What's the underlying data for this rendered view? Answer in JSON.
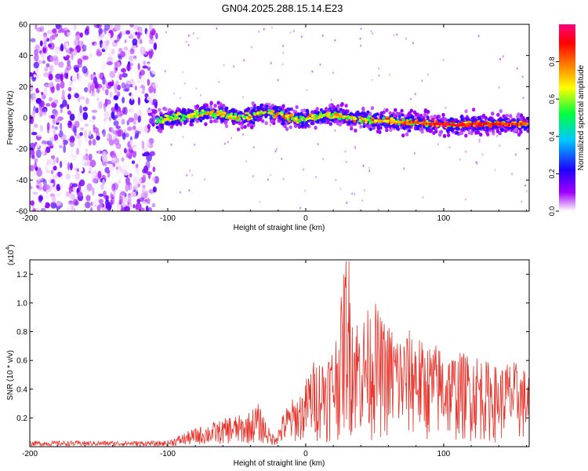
{
  "title": "GN04.2025.288.15.14.E23",
  "colors": {
    "snr_line": "#e8332a",
    "frame": "#000000"
  },
  "chart_data": [
    {
      "type": "heatmap",
      "id": "spectrogram",
      "xlabel": "Height of straight line (km)",
      "ylabel": "Frequency (Hz)",
      "xlim": [
        -200,
        162
      ],
      "ylim": [
        -60,
        60
      ],
      "xticks": [
        -200,
        -100,
        0,
        100
      ],
      "yticks": [
        -60,
        -40,
        -20,
        0,
        20,
        40,
        60
      ],
      "colorbar": {
        "label": "Normalized spectral amplitude",
        "range": [
          0,
          1
        ],
        "ticks": [
          0.0,
          0.2,
          0.4,
          0.6,
          0.8
        ],
        "tick_labels": [
          "0.0",
          "0.2",
          "0.4",
          "0.6",
          "0.8"
        ],
        "colormap": [
          "#ffffff",
          "#a000ff",
          "#2000ff",
          "#00c8ff",
          "#00ff40",
          "#ffff00",
          "#ff8000",
          "#ff0000",
          "#ff0080"
        ]
      },
      "noise_region_km": [
        -200,
        -108
      ],
      "ridge": {
        "x": [
          -108,
          -95,
          -80,
          -70,
          -60,
          -50,
          -40,
          -32,
          -25,
          -15,
          -5,
          0,
          10,
          20,
          30,
          40,
          50,
          60,
          70,
          80,
          90,
          100,
          110,
          120,
          130,
          140,
          150,
          162
        ],
        "y": [
          -2,
          0,
          2,
          3,
          2,
          0,
          1,
          4,
          3,
          1,
          -1,
          0,
          1,
          2,
          0,
          -1,
          -2,
          -2,
          -3,
          -3,
          -4,
          -4,
          -5,
          -4,
          -4,
          -4,
          -4,
          -4
        ],
        "peak_amplitude": [
          0.3,
          0.35,
          0.4,
          0.45,
          0.45,
          0.45,
          0.5,
          0.6,
          0.55,
          0.5,
          0.45,
          0.45,
          0.5,
          0.45,
          0.5,
          0.55,
          0.6,
          0.7,
          0.75,
          0.8,
          0.85,
          0.9,
          0.9,
          0.85,
          0.85,
          0.85,
          0.85,
          0.8
        ]
      }
    },
    {
      "type": "line",
      "id": "snr",
      "xlabel": "Height of straight line (km)",
      "ylabel": "SNR (10 * v/v)",
      "y_multiplier": "(x10",
      "y_multiplier_exp": "4",
      "y_multiplier_close": ")",
      "xlim": [
        -200,
        162
      ],
      "ylim": [
        0,
        1.3
      ],
      "xticks": [
        -200,
        -100,
        0,
        100
      ],
      "yticks": [
        0.2,
        0.4,
        0.6,
        0.8,
        1.0,
        1.2
      ],
      "series": [
        {
          "name": "SNR",
          "x": [
            -200,
            -180,
            -160,
            -140,
            -120,
            -110,
            -100,
            -90,
            -80,
            -70,
            -60,
            -55,
            -50,
            -45,
            -40,
            -35,
            -30,
            -25,
            -20,
            -15,
            -10,
            -5,
            0,
            5,
            10,
            15,
            20,
            25,
            30,
            35,
            40,
            45,
            50,
            55,
            60,
            65,
            70,
            75,
            80,
            85,
            90,
            95,
            100,
            105,
            110,
            115,
            120,
            125,
            130,
            135,
            140,
            145,
            150,
            155,
            160
          ],
          "values": [
            0.02,
            0.02,
            0.02,
            0.02,
            0.02,
            0.03,
            0.04,
            0.08,
            0.12,
            0.15,
            0.17,
            0.2,
            0.2,
            0.2,
            0.23,
            0.28,
            0.2,
            0.08,
            0.12,
            0.25,
            0.3,
            0.35,
            0.4,
            0.5,
            0.52,
            0.55,
            0.6,
            0.8,
            1.27,
            0.8,
            0.75,
            0.8,
            0.85,
            0.75,
            0.72,
            0.7,
            0.65,
            0.68,
            0.7,
            0.6,
            0.6,
            0.6,
            0.58,
            0.55,
            0.55,
            0.55,
            0.55,
            0.55,
            0.5,
            0.5,
            0.45,
            0.5,
            0.5,
            0.48,
            0.45
          ]
        }
      ]
    }
  ]
}
